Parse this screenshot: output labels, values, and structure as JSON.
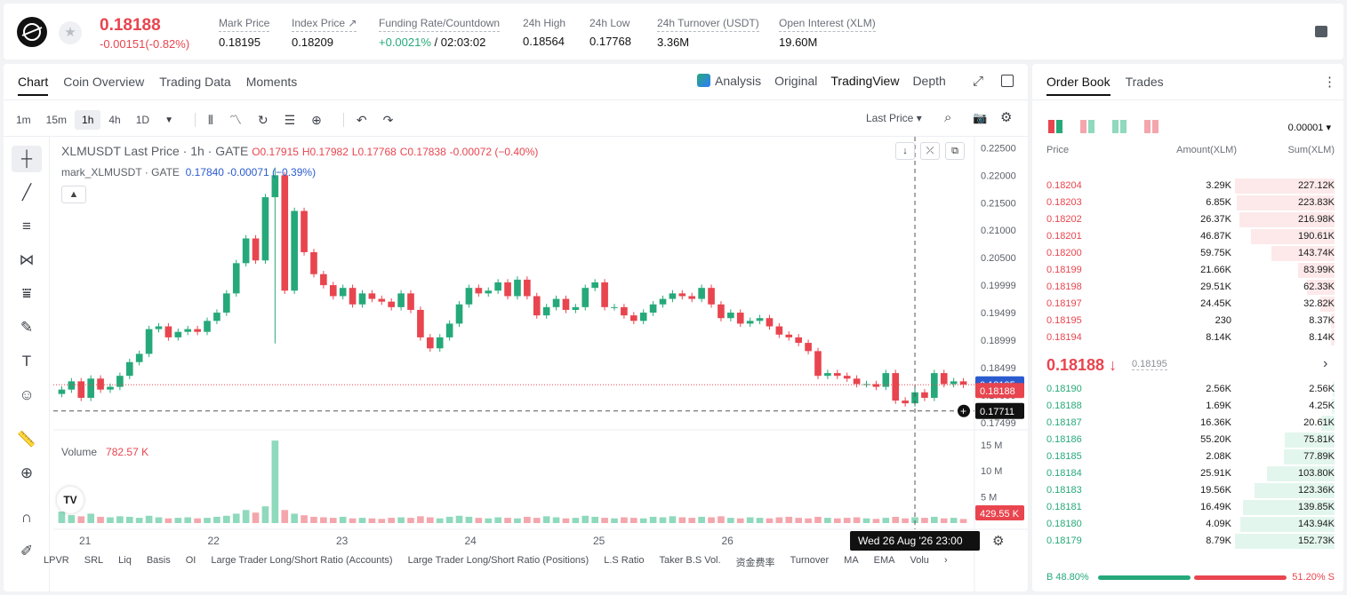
{
  "header": {
    "last_price": "0.18188",
    "change": "-0.00151(-0.82%)",
    "stats": [
      {
        "label": "Mark Price",
        "value": "0.18195"
      },
      {
        "label": "Index Price ↗",
        "value": "0.18209"
      },
      {
        "label": "Funding Rate/Countdown",
        "value_green": "+0.0021%",
        "value": " / 02:03:02"
      },
      {
        "label": "24h High",
        "value": "0.18564"
      },
      {
        "label": "24h Low",
        "value": "0.17768"
      },
      {
        "label": "24h Turnover (USDT)",
        "value": "3.36M"
      },
      {
        "label": "Open Interest (XLM)",
        "value": "19.60M"
      }
    ]
  },
  "chart_tabs": [
    "Chart",
    "Coin Overview",
    "Trading Data",
    "Moments"
  ],
  "views": {
    "analysis": "Analysis",
    "original": "Original",
    "tradingview": "TradingView",
    "depth": "Depth"
  },
  "intervals": [
    "1m",
    "15m",
    "1h",
    "4h",
    "1D"
  ],
  "price_selector": "Last Price ▾",
  "legend": {
    "line1_prefix": "XLMUSDT Last Price · 1h · GATE",
    "o": "O0.17915",
    "h": "H0.17982",
    "l": "L0.17768",
    "c": "C0.17838",
    "chg": "-0.00072 (−0.40%)",
    "line2_prefix": "mark_XLMUSDT · GATE",
    "mark_val": "0.17840",
    "mark_chg": "-0.00071 (−0.39%)"
  },
  "volume_legend": {
    "label": "Volume",
    "value": "782.57 K"
  },
  "indicators": [
    "LPVR",
    "SRL",
    "Liq",
    "Basis",
    "OI",
    "Large Trader Long/Short Ratio (Accounts)",
    "Large Trader Long/Short Ratio (Positions)",
    "L.S Ratio",
    "Taker B.S Vol.",
    "资金费率",
    "Turnover",
    "MA",
    "EMA",
    "Volu"
  ],
  "chart_data": {
    "type": "candlestick",
    "price_axis_ticks": [
      "0.22500",
      "0.22000",
      "0.21500",
      "0.21000",
      "0.20500",
      "0.19999",
      "0.19499",
      "0.18999",
      "0.18499",
      "0.17999",
      "0.17499"
    ],
    "price_range": [
      0.174,
      0.227
    ],
    "volume_axis_ticks": [
      "15 M",
      "10 M",
      "5 M"
    ],
    "volume_range": [
      0,
      17
    ],
    "x_ticks": [
      "21",
      "22",
      "23",
      "24",
      "25",
      "26"
    ],
    "badges": {
      "mark": "0.18195",
      "last": "0.18188",
      "cursor": "0.17711",
      "volume_last": "429.55 K"
    },
    "crosshair_time": "Wed 26 Aug '26   23:00",
    "close_path": [
      0.181,
      0.1825,
      0.1795,
      0.183,
      0.181,
      0.1815,
      0.1835,
      0.186,
      0.1875,
      0.192,
      0.1925,
      0.1905,
      0.1915,
      0.192,
      0.1915,
      0.1935,
      0.195,
      0.1985,
      0.204,
      0.2085,
      0.2045,
      0.216,
      0.22,
      0.199,
      0.2135,
      0.206,
      0.202,
      0.2,
      0.198,
      0.1995,
      0.1965,
      0.1985,
      0.1975,
      0.197,
      0.196,
      0.1985,
      0.1955,
      0.1905,
      0.1885,
      0.1905,
      0.193,
      0.1965,
      0.1995,
      0.1985,
      0.199,
      0.2005,
      0.198,
      0.201,
      0.198,
      0.1945,
      0.196,
      0.1975,
      0.1955,
      0.196,
      0.1995,
      0.2005,
      0.196,
      0.196,
      0.1945,
      0.1935,
      0.195,
      0.1965,
      0.1975,
      0.1985,
      0.198,
      0.1975,
      0.1995,
      0.1965,
      0.194,
      0.195,
      0.193,
      0.1935,
      0.194,
      0.1925,
      0.191,
      0.1905,
      0.1895,
      0.188,
      0.1835,
      0.184,
      0.1835,
      0.183,
      0.182,
      0.182,
      0.1815,
      0.184,
      0.179,
      0.1785,
      0.1805,
      0.1795,
      0.184,
      0.182,
      0.1825,
      0.1819
    ],
    "volumes": [
      2.2,
      1.5,
      1.3,
      1.8,
      1.2,
      1.1,
      1.3,
      1.2,
      1.0,
      1.4,
      1.1,
      0.9,
      1.0,
      1.1,
      0.9,
      1.0,
      1.2,
      1.4,
      1.8,
      2.5,
      2.0,
      3.2,
      15.8,
      2.5,
      1.8,
      1.5,
      1.2,
      1.1,
      1.0,
      1.2,
      0.9,
      1.0,
      0.9,
      0.8,
      1.0,
      1.1,
      1.0,
      1.3,
      1.1,
      0.9,
      1.2,
      1.4,
      1.2,
      1.0,
      0.9,
      1.1,
      1.0,
      0.9,
      1.2,
      1.0,
      1.3,
      1.1,
      0.9,
      1.0,
      1.4,
      1.2,
      1.0,
      0.9,
      1.1,
      1.0,
      0.9,
      1.2,
      1.1,
      1.3,
      1.1,
      1.0,
      1.2,
      1.1,
      1.3,
      1.0,
      0.9,
      1.1,
      1.0,
      0.9,
      1.1,
      1.2,
      1.0,
      0.9,
      1.2,
      1.0,
      0.9,
      1.0,
      1.1,
      0.9,
      0.8,
      1.0,
      1.2,
      0.9,
      1.1,
      1.0,
      1.2,
      0.9,
      1.0,
      0.78
    ]
  },
  "book": {
    "tabs": [
      "Order Book",
      "Trades"
    ],
    "precision": "0.00001 ▾",
    "headers": {
      "price": "Price",
      "amount": "Amount(XLM)",
      "sum": "Sum(XLM)"
    },
    "asks": [
      {
        "price": "0.18204",
        "amount": "3.29K",
        "sum": "227.12K",
        "depth": 1.0
      },
      {
        "price": "0.18203",
        "amount": "6.85K",
        "sum": "223.83K",
        "depth": 0.985
      },
      {
        "price": "0.18202",
        "amount": "26.37K",
        "sum": "216.98K",
        "depth": 0.955
      },
      {
        "price": "0.18201",
        "amount": "46.87K",
        "sum": "190.61K",
        "depth": 0.839
      },
      {
        "price": "0.18200",
        "amount": "59.75K",
        "sum": "143.74K",
        "depth": 0.633
      },
      {
        "price": "0.18199",
        "amount": "21.66K",
        "sum": "83.99K",
        "depth": 0.37
      },
      {
        "price": "0.18198",
        "amount": "29.51K",
        "sum": "62.33K",
        "depth": 0.274
      },
      {
        "price": "0.18197",
        "amount": "24.45K",
        "sum": "32.82K",
        "depth": 0.145
      },
      {
        "price": "0.18195",
        "amount": "230",
        "sum": "8.37K",
        "depth": 0.037
      },
      {
        "price": "0.18194",
        "amount": "8.14K",
        "sum": "8.14K",
        "depth": 0.036
      }
    ],
    "mid_price": "0.18188 ↓",
    "mid_mark": "0.18195",
    "bids": [
      {
        "price": "0.18190",
        "amount": "2.56K",
        "sum": "2.56K",
        "depth": 0.017
      },
      {
        "price": "0.18188",
        "amount": "1.69K",
        "sum": "4.25K",
        "depth": 0.028
      },
      {
        "price": "0.18187",
        "amount": "16.36K",
        "sum": "20.61K",
        "depth": 0.135
      },
      {
        "price": "0.18186",
        "amount": "55.20K",
        "sum": "75.81K",
        "depth": 0.497
      },
      {
        "price": "0.18185",
        "amount": "2.08K",
        "sum": "77.89K",
        "depth": 0.51
      },
      {
        "price": "0.18184",
        "amount": "25.91K",
        "sum": "103.80K",
        "depth": 0.68
      },
      {
        "price": "0.18183",
        "amount": "19.56K",
        "sum": "123.36K",
        "depth": 0.808
      },
      {
        "price": "0.18181",
        "amount": "16.49K",
        "sum": "139.85K",
        "depth": 0.916
      },
      {
        "price": "0.18180",
        "amount": "4.09K",
        "sum": "143.94K",
        "depth": 0.943
      },
      {
        "price": "0.18179",
        "amount": "8.79K",
        "sum": "152.73K",
        "depth": 1.0
      }
    ],
    "buy_pct": "B 48.80%",
    "sell_pct": "51.20% S"
  },
  "colors": {
    "up": "#26a97a",
    "down": "#e8454f",
    "up_vol": "#8fd9bd",
    "down_vol": "#f4a6ad",
    "ask_depth": "#fde9ea",
    "bid_depth": "#e3f6ee"
  }
}
